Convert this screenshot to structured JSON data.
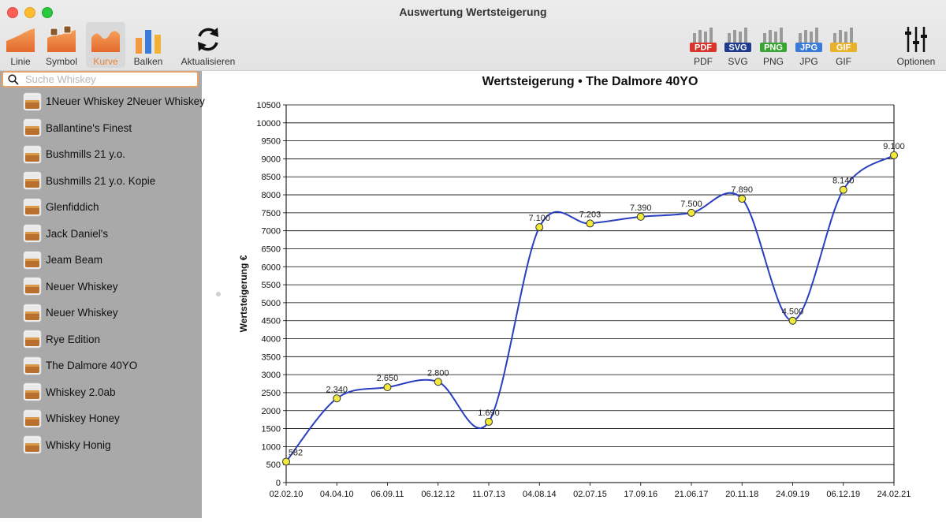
{
  "window": {
    "title": "Auswertung Wertsteigerung"
  },
  "toolbar": {
    "left": [
      {
        "id": "linie",
        "label": "Linie",
        "icon": "line-chart-icon"
      },
      {
        "id": "symbol",
        "label": "Symbol",
        "icon": "symbol-chart-icon"
      },
      {
        "id": "kurve",
        "label": "Kurve",
        "icon": "curve-chart-icon",
        "active": true
      },
      {
        "id": "balken",
        "label": "Balken",
        "icon": "bar-chart-icon"
      },
      {
        "id": "aktualisieren",
        "label": "Aktualisieren",
        "icon": "refresh-icon"
      }
    ],
    "exports": [
      {
        "id": "pdf",
        "label": "PDF",
        "badge": "PDF",
        "color": "#d9342b"
      },
      {
        "id": "svg",
        "label": "SVG",
        "badge": "SVG",
        "color": "#1f3b8c"
      },
      {
        "id": "png",
        "label": "PNG",
        "badge": "PNG",
        "color": "#3aa435"
      },
      {
        "id": "jpg",
        "label": "JPG",
        "badge": "JPG",
        "color": "#3a7ad9"
      },
      {
        "id": "gif",
        "label": "GIF",
        "badge": "GIF",
        "color": "#e8b32a"
      }
    ],
    "options_label": "Optionen"
  },
  "search": {
    "placeholder": "Suche Whiskey",
    "value": ""
  },
  "whiskeys": [
    "1Neuer Whiskey 2Neuer Whiskey",
    "Ballantine's Finest",
    "Bushmills 21 y.o.",
    "Bushmills 21 y.o. Kopie",
    "Glenfiddich",
    "Jack Daniel's",
    "Jeam Beam",
    "Neuer Whiskey",
    "Neuer Whiskey",
    "Rye Edition",
    "The Dalmore 40YO",
    "Whiskey 2.0ab",
    "Whiskey Honey",
    "Whisky Honig"
  ],
  "colors": {
    "line": "#2a3ec0",
    "point": "#f2ea3a",
    "grid": "#000000"
  },
  "chart_data": {
    "type": "line",
    "title": "Wertsteigerung • The Dalmore 40YO",
    "xlabel": "",
    "ylabel": "Wertsteigerung €",
    "ylim": [
      0,
      10500
    ],
    "ytick_step": 500,
    "grid": true,
    "smooth": true,
    "categories": [
      "02.02.10",
      "04.04.10",
      "06.09.11",
      "06.12.12",
      "11.07.13",
      "04.08.14",
      "02.07.15",
      "17.09.16",
      "21.06.17",
      "20.11.18",
      "24.09.19",
      "06.12.19",
      "24.02.21"
    ],
    "values": [
      582,
      2340,
      2650,
      2800,
      1690,
      7100,
      7203,
      7390,
      7500,
      7890,
      4500,
      8140,
      9100
    ],
    "labels": [
      "582",
      "2.340",
      "2.650",
      "2.800",
      "1.690",
      "7.100",
      "7.203",
      "7.390",
      "7.500",
      "7.890",
      "4.500",
      "8.140",
      "9.100"
    ]
  }
}
